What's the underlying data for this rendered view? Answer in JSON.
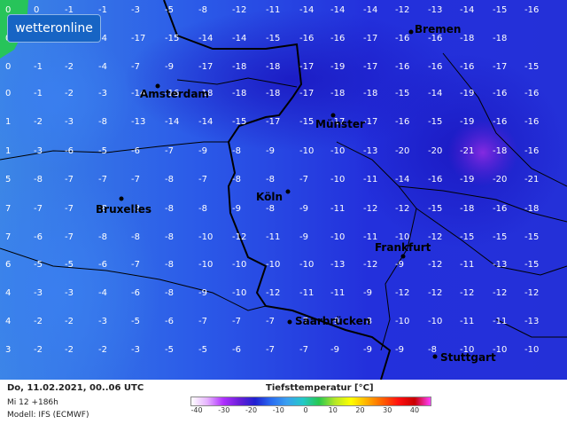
{
  "logo": "wetteronline",
  "footer": {
    "date": "Do, 11.02.2021, 00..06 UTC",
    "run": "Mi 12 +186h",
    "model": "Modell: IFS (ECMWF)",
    "title": "Tiefsttemperatur [°C]"
  },
  "legend": {
    "ticks": [
      "-40",
      "-30",
      "-20",
      "-10",
      "0",
      "10",
      "20",
      "30",
      "40"
    ],
    "colors": [
      "#ffffff",
      "#e6b3ff",
      "#b030ff",
      "#6a1fd8",
      "#2020d0",
      "#2a6cf0",
      "#3aa0f0",
      "#23c8c8",
      "#28c850",
      "#b4e628",
      "#ffff00",
      "#ffb000",
      "#ff6000",
      "#ff1010",
      "#c80000",
      "#ff40ff"
    ]
  },
  "cities": [
    {
      "name": "Bremen"
    },
    {
      "name": "Amsterdam"
    },
    {
      "name": "Münster"
    },
    {
      "name": "Köln"
    },
    {
      "name": "Bruxelles"
    },
    {
      "name": "Frankfurt"
    },
    {
      "name": "Saarbrücken"
    },
    {
      "name": "Stuttgart"
    }
  ],
  "grid_rows": [
    [
      "0",
      "0",
      "-1",
      "-1",
      "-3",
      "-5",
      "-8",
      "-12",
      "-11",
      "-14",
      "-14",
      "-14",
      "-12",
      "-13",
      "-14",
      "-15",
      "-16"
    ],
    [
      "0",
      "-1",
      "-2",
      "-4",
      "-17",
      "-15",
      "-14",
      "-14",
      "-15",
      "-16",
      "-16",
      "-17",
      "-16",
      "-16",
      "-18",
      "-18",
      ""
    ],
    [
      "0",
      "-1",
      "-2",
      "-4",
      "-7",
      "-9",
      "-17",
      "-18",
      "-18",
      "-17",
      "-19",
      "-17",
      "-16",
      "-16",
      "-16",
      "-17",
      "-15"
    ],
    [
      "0",
      "-1",
      "-2",
      "-3",
      "-14",
      "-16",
      "-18",
      "-18",
      "-18",
      "-17",
      "-18",
      "-18",
      "-15",
      "-14",
      "-19",
      "-16",
      "-16"
    ],
    [
      "1",
      "-2",
      "-3",
      "-8",
      "-13",
      "-14",
      "-14",
      "-15",
      "-17",
      "-15",
      "-17",
      "-17",
      "-16",
      "-15",
      "-19",
      "-16",
      "-16"
    ],
    [
      "1",
      "-3",
      "-6",
      "-5",
      "-6",
      "-7",
      "-9",
      "-8",
      "-9",
      "-10",
      "-10",
      "-13",
      "-20",
      "-20",
      "-21",
      "-18",
      "-16"
    ],
    [
      "5",
      "-8",
      "-7",
      "-7",
      "-7",
      "-8",
      "-7",
      "-8",
      "-8",
      "-7",
      "-10",
      "-11",
      "-14",
      "-16",
      "-19",
      "-20",
      "-21"
    ],
    [
      "7",
      "-7",
      "-7",
      "-8",
      "-8",
      "-8",
      "-8",
      "-9",
      "-8",
      "-9",
      "-11",
      "-12",
      "-12",
      "-15",
      "-18",
      "-16",
      "-18"
    ],
    [
      "7",
      "-6",
      "-7",
      "-8",
      "-8",
      "-8",
      "-10",
      "-12",
      "-11",
      "-9",
      "-10",
      "-11",
      "-10",
      "-12",
      "-15",
      "-15",
      "-15"
    ],
    [
      "6",
      "-5",
      "-5",
      "-6",
      "-7",
      "-8",
      "-10",
      "-10",
      "-10",
      "-10",
      "-13",
      "-12",
      "-9",
      "-12",
      "-11",
      "-13",
      "-15"
    ],
    [
      "4",
      "-3",
      "-3",
      "-4",
      "-6",
      "-8",
      "-9",
      "-10",
      "-12",
      "-11",
      "-11",
      "-9",
      "-12",
      "-12",
      "-12",
      "-12",
      "-12"
    ],
    [
      "4",
      "-2",
      "-2",
      "-3",
      "-5",
      "-6",
      "-7",
      "-7",
      "-7",
      "-7",
      "-9",
      "-8",
      "-10",
      "-10",
      "-11",
      "-11",
      "-13"
    ],
    [
      "3",
      "-2",
      "-2",
      "-2",
      "-3",
      "-5",
      "-5",
      "-6",
      "-7",
      "-7",
      "-9",
      "-9",
      "-9",
      "-8",
      "-10",
      "-10",
      "-10"
    ]
  ]
}
